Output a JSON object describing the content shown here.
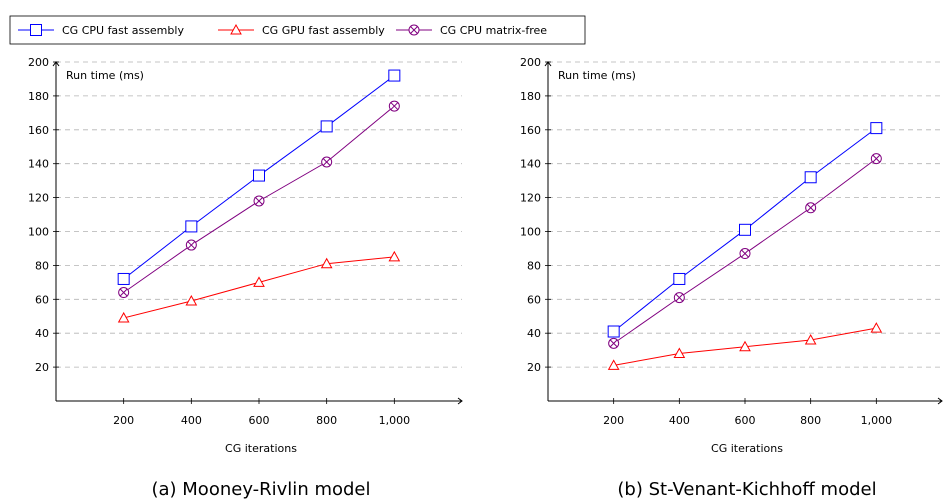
{
  "legend": [
    {
      "label": "CG CPU fast assembly",
      "color": "#0000ff",
      "marker": "square"
    },
    {
      "label": "CG GPU fast assembly",
      "color": "#ff0000",
      "marker": "triangle"
    },
    {
      "label": "CG CPU matrix-free",
      "color": "#800080",
      "marker": "otimes"
    }
  ],
  "chart_data": [
    {
      "type": "line",
      "title": "",
      "caption": "(a) Mooney-Rivlin model",
      "xlabel": "CG iterations",
      "ylabel": "Run time (ms)",
      "x": [
        200,
        400,
        600,
        800,
        1000
      ],
      "x_tick_labels": [
        "200",
        "400",
        "600",
        "800",
        "1,000"
      ],
      "y_ticks": [
        20,
        40,
        60,
        80,
        100,
        120,
        140,
        160,
        180,
        200
      ],
      "xlim": [
        0,
        1200
      ],
      "ylim": [
        0,
        200
      ],
      "grid": "horizontal-dashed",
      "legend_position": "top",
      "series": [
        {
          "name": "CG CPU fast assembly",
          "values": [
            72,
            103,
            133,
            162,
            192
          ]
        },
        {
          "name": "CG GPU fast assembly",
          "values": [
            49,
            59,
            70,
            81,
            85
          ]
        },
        {
          "name": "CG CPU matrix-free",
          "values": [
            64,
            92,
            118,
            141,
            174
          ]
        }
      ]
    },
    {
      "type": "line",
      "title": "",
      "caption": "(b) St-Venant-Kichhoff model",
      "xlabel": "CG iterations",
      "ylabel": "Run time (ms)",
      "x": [
        200,
        400,
        600,
        800,
        1000
      ],
      "x_tick_labels": [
        "200",
        "400",
        "600",
        "800",
        "1,000"
      ],
      "y_ticks": [
        20,
        40,
        60,
        80,
        100,
        120,
        140,
        160,
        180,
        200
      ],
      "xlim": [
        0,
        1200
      ],
      "ylim": [
        0,
        200
      ],
      "grid": "horizontal-dashed",
      "legend_position": "top",
      "series": [
        {
          "name": "CG CPU fast assembly",
          "values": [
            41,
            72,
            101,
            132,
            161
          ]
        },
        {
          "name": "CG GPU fast assembly",
          "values": [
            21,
            28,
            32,
            36,
            43
          ]
        },
        {
          "name": "CG CPU matrix-free",
          "values": [
            34,
            61,
            87,
            114,
            143
          ]
        }
      ]
    }
  ]
}
